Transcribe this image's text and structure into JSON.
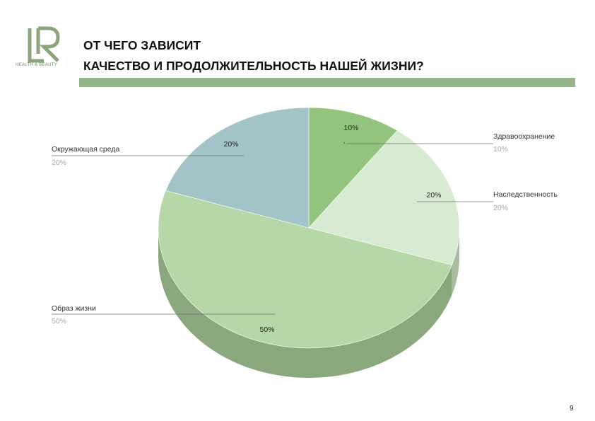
{
  "header": {
    "title_line1": "ОТ ЧЕГО ЗАВИСИТ",
    "title_line2": "КАЧЕСТВО И ПРОДОЛЖИТЕЛЬНОСТЬ НАШЕЙ ЖИЗНИ?",
    "logo_caption": "HEALTH & BEAUTY"
  },
  "colors": {
    "accent_bar": "#97b58a",
    "logo": "#8aa57c"
  },
  "chart_data": {
    "type": "pie",
    "style": "3d",
    "slices": [
      {
        "name": "Здравоохранение",
        "value": 10,
        "label": "10%",
        "legend_value": "10%",
        "color": "#93c47d",
        "side": "#6e9a5b"
      },
      {
        "name": "Наследственность",
        "value": 20,
        "label": "20%",
        "legend_value": "20%",
        "color": "#d9ead3",
        "side": "#a9bca2"
      },
      {
        "name": "Образ жизни",
        "value": 50,
        "label": "50%",
        "legend_value": "50%",
        "color": "#b6d7a8",
        "side": "#8ba77d"
      },
      {
        "name": "Окружающая среда",
        "value": 20,
        "label": "20%",
        "legend_value": "20%",
        "color": "#a2c4c9",
        "side": "#7c9ea3"
      }
    ]
  },
  "footer": {
    "page_number": "9"
  }
}
